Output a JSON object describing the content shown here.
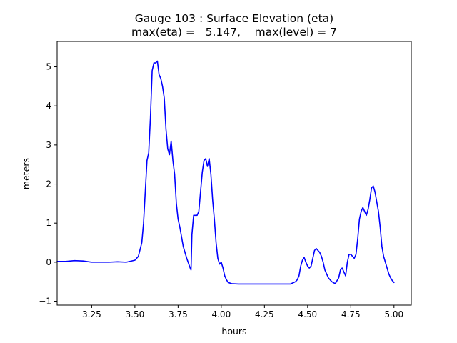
{
  "chart_data": {
    "type": "line",
    "title": "Gauge 103 : Surface Elevation (eta)",
    "subtitle": "max(eta) =   5.147,    max(level) = 7",
    "xlabel": "hours",
    "ylabel": "meters",
    "xlim": [
      3.05,
      5.1
    ],
    "ylim": [
      -1.1,
      5.65
    ],
    "x_ticks": [
      3.25,
      3.5,
      3.75,
      4.0,
      4.25,
      4.5,
      4.75,
      5.0
    ],
    "x_tick_labels": [
      "3.25",
      "3.50",
      "3.75",
      "4.00",
      "4.25",
      "4.50",
      "4.75",
      "5.00"
    ],
    "y_ticks": [
      -1,
      0,
      1,
      2,
      3,
      4,
      5
    ],
    "y_tick_labels": [
      "−1",
      "0",
      "1",
      "2",
      "3",
      "4",
      "5"
    ],
    "grid": false,
    "series": [
      {
        "name": "eta",
        "color": "#0000ff",
        "x": [
          3.05,
          3.1,
          3.15,
          3.2,
          3.25,
          3.3,
          3.35,
          3.4,
          3.45,
          3.5,
          3.52,
          3.54,
          3.55,
          3.56,
          3.57,
          3.58,
          3.59,
          3.6,
          3.61,
          3.62,
          3.63,
          3.64,
          3.65,
          3.66,
          3.67,
          3.68,
          3.69,
          3.7,
          3.71,
          3.72,
          3.73,
          3.74,
          3.75,
          3.76,
          3.78,
          3.8,
          3.82,
          3.825,
          3.83,
          3.84,
          3.85,
          3.86,
          3.87,
          3.88,
          3.89,
          3.9,
          3.91,
          3.92,
          3.93,
          3.94,
          3.95,
          3.96,
          3.97,
          3.98,
          3.99,
          4.0,
          4.01,
          4.02,
          4.03,
          4.04,
          4.06,
          4.1,
          4.2,
          4.3,
          4.4,
          4.42,
          4.43,
          4.44,
          4.45,
          4.46,
          4.47,
          4.48,
          4.49,
          4.5,
          4.51,
          4.52,
          4.53,
          4.54,
          4.55,
          4.56,
          4.57,
          4.58,
          4.59,
          4.6,
          4.62,
          4.64,
          4.66,
          4.68,
          4.69,
          4.7,
          4.71,
          4.72,
          4.73,
          4.74,
          4.75,
          4.76,
          4.77,
          4.78,
          4.79,
          4.8,
          4.81,
          4.82,
          4.83,
          4.84,
          4.85,
          4.86,
          4.87,
          4.88,
          4.89,
          4.9,
          4.91,
          4.92,
          4.93,
          4.94,
          4.95,
          4.96,
          4.97,
          4.98,
          4.99,
          5.0
        ],
        "y": [
          0.02,
          0.02,
          0.04,
          0.03,
          0.0,
          0.0,
          0.0,
          0.01,
          0.0,
          0.05,
          0.15,
          0.5,
          1.0,
          1.8,
          2.6,
          2.8,
          3.7,
          4.9,
          5.1,
          5.1,
          5.147,
          4.8,
          4.7,
          4.5,
          4.2,
          3.4,
          2.9,
          2.75,
          3.1,
          2.6,
          2.25,
          1.5,
          1.1,
          0.9,
          0.4,
          0.1,
          -0.15,
          -0.2,
          0.7,
          1.2,
          1.2,
          1.2,
          1.3,
          1.8,
          2.3,
          2.6,
          2.65,
          2.45,
          2.65,
          2.25,
          1.6,
          1.1,
          0.5,
          0.1,
          -0.05,
          0.0,
          -0.15,
          -0.35,
          -0.45,
          -0.52,
          -0.55,
          -0.56,
          -0.56,
          -0.56,
          -0.56,
          -0.52,
          -0.5,
          -0.45,
          -0.35,
          -0.1,
          0.05,
          0.12,
          0.0,
          -0.1,
          -0.15,
          -0.1,
          0.1,
          0.3,
          0.35,
          0.3,
          0.25,
          0.15,
          0.0,
          -0.2,
          -0.4,
          -0.5,
          -0.55,
          -0.4,
          -0.2,
          -0.15,
          -0.25,
          -0.35,
          0.0,
          0.2,
          0.2,
          0.15,
          0.1,
          0.2,
          0.6,
          1.1,
          1.3,
          1.4,
          1.3,
          1.2,
          1.35,
          1.6,
          1.9,
          1.95,
          1.8,
          1.55,
          1.3,
          0.9,
          0.4,
          0.15,
          0.0,
          -0.15,
          -0.3,
          -0.4,
          -0.47,
          -0.52
        ]
      }
    ]
  }
}
